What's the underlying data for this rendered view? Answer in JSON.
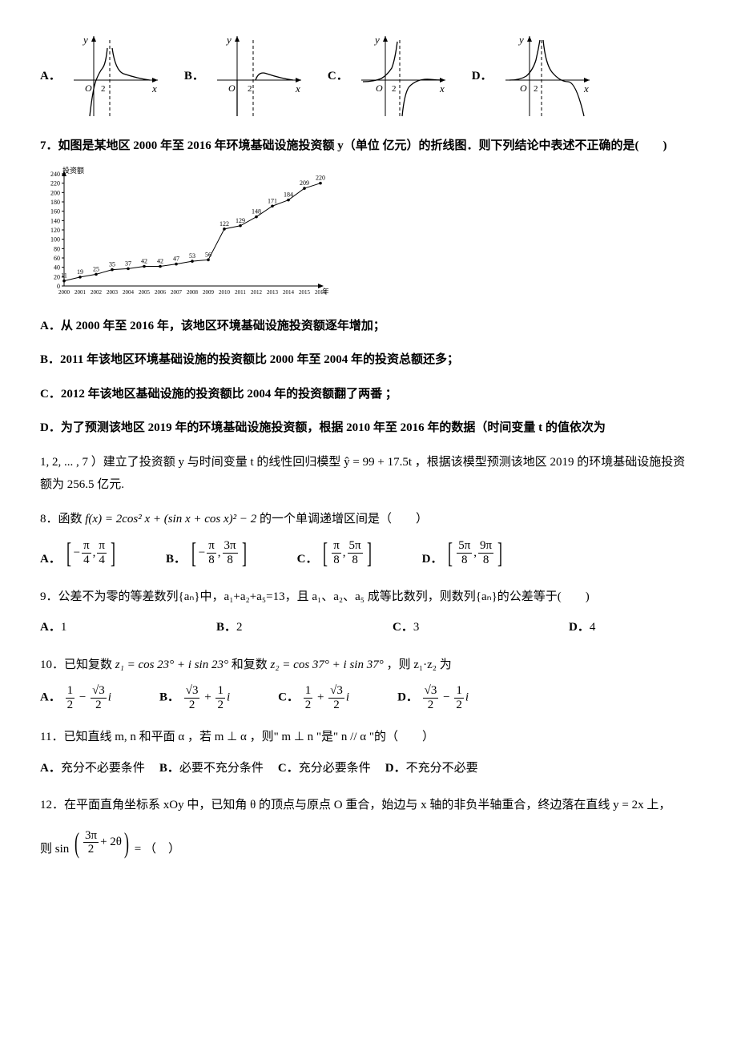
{
  "q6_options": {
    "labels": [
      "A．",
      "B．",
      "C．",
      "D．"
    ],
    "graphs": [
      {
        "type": "A",
        "stroke": "#000",
        "axis": "#000",
        "dash": "4,3"
      },
      {
        "type": "B",
        "stroke": "#000",
        "axis": "#000",
        "dash": "4,3"
      },
      {
        "type": "C",
        "stroke": "#000",
        "axis": "#000",
        "dash": "4,3"
      },
      {
        "type": "D",
        "stroke": "#000",
        "axis": "#000",
        "dash": "4,3"
      }
    ],
    "axis_labels": {
      "x": "x",
      "y": "y",
      "origin": "O",
      "tick": "2"
    }
  },
  "q7": {
    "stem": "7．如图是某地区 2000 年至 2016 年环境基础设施投资额 y（单位 亿元）的折线图．则下列结论中表述不正确的是(　　)",
    "chart": {
      "type": "line",
      "x_label": "年份",
      "y_label": "投资额",
      "years": [
        2000,
        2001,
        2002,
        2003,
        2004,
        2005,
        2006,
        2007,
        2008,
        2009,
        2010,
        2011,
        2012,
        2013,
        2014,
        2015,
        2016
      ],
      "values": [
        11,
        19,
        25,
        35,
        37,
        42,
        42,
        47,
        53,
        56,
        122,
        129,
        148,
        171,
        184,
        209,
        220
      ],
      "ylim": [
        0,
        240
      ],
      "ytick_step": 20,
      "line_color": "#000000",
      "marker_color": "#000000",
      "background_color": "#ffffff",
      "axis_color": "#000000",
      "label_fontsize": 8,
      "value_fontsize": 8
    },
    "options": {
      "A": "从 2000 年至 2016 年，该地区环境基础设施投资额逐年增加；",
      "B": "2011 年该地区环境基础设施的投资额比 2000 年至 2004 年的投资总额还多；",
      "C": "2012 年该地区基础设施的投资额比 2004 年的投资额翻了两番 ；",
      "D_part1": "为了预测该地区 2019 年的环境基础设施投资额，根据 2010 年至 2016 年的数据（时间变量 t 的值依次为",
      "D_part2": "1, 2, ... , 7 ）建立了投资额 y 与时间变量 t 的线性回归模型 ŷ = 99 + 17.5t ，根据该模型预测该地区 2019 的环境基础设施投资额为 256.5 亿元."
    }
  },
  "q8": {
    "stem_prefix": "8．函数 ",
    "formula": "f(x) = 2cos² x + (sin x + cos x)² − 2",
    "stem_suffix": " 的一个单调递增区间是（　　）",
    "options": {
      "A": {
        "lo_num": "π",
        "lo_den": "4",
        "lo_sign": "−",
        "hi_num": "π",
        "hi_den": "4",
        "hi_sign": ""
      },
      "B": {
        "lo_num": "π",
        "lo_den": "8",
        "lo_sign": "−",
        "hi_num": "3π",
        "hi_den": "8",
        "hi_sign": ""
      },
      "C": {
        "lo_num": "π",
        "lo_den": "8",
        "lo_sign": "",
        "hi_num": "5π",
        "hi_den": "8",
        "hi_sign": ""
      },
      "D": {
        "lo_num": "5π",
        "lo_den": "8",
        "lo_sign": "",
        "hi_num": "9π",
        "hi_den": "8",
        "hi_sign": ""
      }
    },
    "labels": [
      "A．",
      "B．",
      "C．",
      "D．"
    ]
  },
  "q9": {
    "stem": "9．公差不为零的等差数列{aₙ}中，a₁+a₂+a₅=13，且 a₁、a₂、a₅ 成等比数列，则数列{aₙ}的公差等于(　　)",
    "options": {
      "A": "1",
      "B": "2",
      "C": "3",
      "D": "4"
    },
    "labels": [
      "A．",
      "B．",
      "C．",
      "D．"
    ]
  },
  "q10": {
    "stem_prefix": "10．已知复数 ",
    "z1": "z₁ = cos 23° + i sin 23°",
    "mid": " 和复数 ",
    "z2": "z₂ = cos 37° + i sin 37°",
    "stem_suffix": "，则 z₁·z₂ 为",
    "options": {
      "A": {
        "a_num": "1",
        "a_den": "2",
        "sign": "−",
        "b_num": "√3",
        "b_den": "2"
      },
      "B": {
        "a_num": "√3",
        "a_den": "2",
        "sign": "+",
        "b_num": "1",
        "b_den": "2"
      },
      "C": {
        "a_num": "1",
        "a_den": "2",
        "sign": "+",
        "b_num": "√3",
        "b_den": "2"
      },
      "D": {
        "a_num": "√3",
        "a_den": "2",
        "sign": "−",
        "b_num": "1",
        "b_den": "2"
      }
    },
    "labels": [
      "A．",
      "B．",
      "C．",
      "D．"
    ]
  },
  "q11": {
    "stem": "11．已知直线 m, n 和平面 α ，若 m ⊥ α ，则\" m ⊥ n \"是\" n // α \"的（　　）",
    "options": {
      "A": "充分不必要条件",
      "B": "必要不充分条件",
      "C": "充分必要条件",
      "D": "不充分不必要"
    },
    "labels": [
      "A．",
      "B．",
      "C．",
      "D．"
    ]
  },
  "q12": {
    "stem": "12．在平面直角坐标系 xOy 中，已知角 θ 的顶点与原点 O 重合，始边与 x 轴的非负半轴重合，终边落在直线 y = 2x 上，",
    "expr_prefix": "则 sin",
    "frac_num": "3π",
    "frac_den": "2",
    "expr_suffix": " + 2θ",
    "tail": " = （　）"
  }
}
